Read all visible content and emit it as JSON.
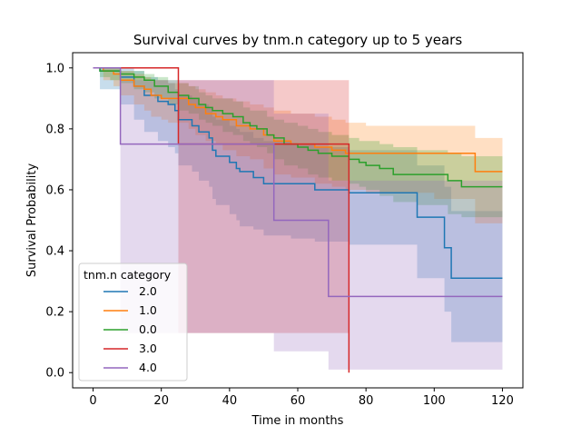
{
  "chart_data": {
    "type": "line",
    "title": "Survival curves by tnm.n category up to 5 years",
    "xlabel": "Time in months",
    "ylabel": "Survival Probability",
    "xlim": [
      -6,
      126
    ],
    "ylim": [
      -0.05,
      1.05
    ],
    "xticks": [
      0,
      20,
      40,
      60,
      80,
      100,
      120
    ],
    "yticks": [
      0.0,
      0.2,
      0.4,
      0.6,
      0.8,
      1.0
    ],
    "xtick_labels": [
      "0",
      "20",
      "40",
      "60",
      "80",
      "100",
      "120"
    ],
    "ytick_labels": [
      "0.0",
      "0.2",
      "0.4",
      "0.6",
      "0.8",
      "1.0"
    ],
    "grid": false,
    "legend": {
      "title": "tnm.n category",
      "placement": "lower-left"
    },
    "series": [
      {
        "name": "2.0",
        "color": "#1f77b4",
        "steps": [
          [
            0,
            1.0
          ],
          [
            2,
            0.99
          ],
          [
            8,
            0.97
          ],
          [
            12,
            0.94
          ],
          [
            15,
            0.91
          ],
          [
            19,
            0.89
          ],
          [
            22,
            0.88
          ],
          [
            24,
            0.86
          ],
          [
            25,
            0.83
          ],
          [
            29,
            0.81
          ],
          [
            31,
            0.79
          ],
          [
            34,
            0.77
          ],
          [
            35,
            0.73
          ],
          [
            36,
            0.71
          ],
          [
            40,
            0.69
          ],
          [
            42,
            0.67
          ],
          [
            43,
            0.66
          ],
          [
            47,
            0.64
          ],
          [
            50,
            0.62
          ],
          [
            58,
            0.62
          ],
          [
            65,
            0.6
          ],
          [
            75,
            0.59
          ],
          [
            95,
            0.51
          ],
          [
            103,
            0.41
          ],
          [
            105,
            0.31
          ],
          [
            120,
            0.31
          ]
        ],
        "ci_upper": [
          [
            0,
            1.0
          ],
          [
            2,
            1.0
          ],
          [
            8,
            1.0
          ],
          [
            12,
            0.99
          ],
          [
            15,
            0.97
          ],
          [
            19,
            0.96
          ],
          [
            22,
            0.95
          ],
          [
            24,
            0.93
          ],
          [
            25,
            0.91
          ],
          [
            29,
            0.9
          ],
          [
            31,
            0.88
          ],
          [
            34,
            0.87
          ],
          [
            35,
            0.84
          ],
          [
            36,
            0.83
          ],
          [
            40,
            0.81
          ],
          [
            42,
            0.8
          ],
          [
            43,
            0.79
          ],
          [
            47,
            0.77
          ],
          [
            50,
            0.76
          ],
          [
            58,
            0.75
          ],
          [
            65,
            0.74
          ],
          [
            75,
            0.73
          ],
          [
            95,
            0.68
          ],
          [
            103,
            0.61
          ],
          [
            105,
            0.53
          ],
          [
            120,
            0.53
          ]
        ],
        "ci_lower": [
          [
            0,
            1.0
          ],
          [
            2,
            0.93
          ],
          [
            8,
            0.88
          ],
          [
            12,
            0.83
          ],
          [
            15,
            0.79
          ],
          [
            19,
            0.76
          ],
          [
            22,
            0.74
          ],
          [
            24,
            0.72
          ],
          [
            25,
            0.68
          ],
          [
            29,
            0.66
          ],
          [
            31,
            0.63
          ],
          [
            34,
            0.61
          ],
          [
            35,
            0.57
          ],
          [
            36,
            0.55
          ],
          [
            40,
            0.52
          ],
          [
            42,
            0.5
          ],
          [
            43,
            0.48
          ],
          [
            47,
            0.47
          ],
          [
            50,
            0.45
          ],
          [
            58,
            0.44
          ],
          [
            65,
            0.43
          ],
          [
            75,
            0.42
          ],
          [
            95,
            0.31
          ],
          [
            103,
            0.2
          ],
          [
            105,
            0.1
          ],
          [
            120,
            0.1
          ]
        ]
      },
      {
        "name": "1.0",
        "color": "#ff7f0e",
        "steps": [
          [
            0,
            1.0
          ],
          [
            3,
            0.99
          ],
          [
            6,
            0.98
          ],
          [
            8,
            0.96
          ],
          [
            12,
            0.94
          ],
          [
            15,
            0.93
          ],
          [
            17,
            0.91
          ],
          [
            20,
            0.9
          ],
          [
            22,
            0.9
          ],
          [
            28,
            0.88
          ],
          [
            30,
            0.87
          ],
          [
            33,
            0.85
          ],
          [
            36,
            0.84
          ],
          [
            38,
            0.83
          ],
          [
            42,
            0.81
          ],
          [
            46,
            0.8
          ],
          [
            50,
            0.78
          ],
          [
            53,
            0.76
          ],
          [
            58,
            0.75
          ],
          [
            65,
            0.74
          ],
          [
            70,
            0.73
          ],
          [
            74,
            0.72
          ],
          [
            80,
            0.72
          ],
          [
            100,
            0.72
          ],
          [
            112,
            0.66
          ],
          [
            120,
            0.66
          ]
        ],
        "ci_upper": [
          [
            0,
            1.0
          ],
          [
            3,
            1.0
          ],
          [
            6,
            1.0
          ],
          [
            8,
            0.99
          ],
          [
            12,
            0.98
          ],
          [
            15,
            0.97
          ],
          [
            17,
            0.96
          ],
          [
            20,
            0.96
          ],
          [
            22,
            0.95
          ],
          [
            28,
            0.94
          ],
          [
            30,
            0.93
          ],
          [
            33,
            0.92
          ],
          [
            36,
            0.91
          ],
          [
            38,
            0.9
          ],
          [
            42,
            0.89
          ],
          [
            46,
            0.88
          ],
          [
            50,
            0.87
          ],
          [
            53,
            0.86
          ],
          [
            58,
            0.85
          ],
          [
            65,
            0.84
          ],
          [
            70,
            0.83
          ],
          [
            74,
            0.82
          ],
          [
            80,
            0.81
          ],
          [
            100,
            0.81
          ],
          [
            112,
            0.77
          ],
          [
            120,
            0.77
          ]
        ],
        "ci_lower": [
          [
            0,
            1.0
          ],
          [
            3,
            0.96
          ],
          [
            6,
            0.94
          ],
          [
            8,
            0.91
          ],
          [
            12,
            0.88
          ],
          [
            15,
            0.86
          ],
          [
            17,
            0.84
          ],
          [
            20,
            0.83
          ],
          [
            22,
            0.82
          ],
          [
            28,
            0.8
          ],
          [
            30,
            0.78
          ],
          [
            33,
            0.76
          ],
          [
            36,
            0.75
          ],
          [
            38,
            0.73
          ],
          [
            42,
            0.71
          ],
          [
            46,
            0.7
          ],
          [
            50,
            0.67
          ],
          [
            53,
            0.65
          ],
          [
            58,
            0.64
          ],
          [
            65,
            0.62
          ],
          [
            70,
            0.61
          ],
          [
            74,
            0.6
          ],
          [
            80,
            0.59
          ],
          [
            100,
            0.57
          ],
          [
            112,
            0.49
          ],
          [
            120,
            0.49
          ]
        ]
      },
      {
        "name": "0.0",
        "color": "#2ca02c",
        "steps": [
          [
            0,
            1.0
          ],
          [
            2,
            0.99
          ],
          [
            5,
            0.99
          ],
          [
            8,
            0.98
          ],
          [
            12,
            0.97
          ],
          [
            15,
            0.96
          ],
          [
            18,
            0.94
          ],
          [
            22,
            0.92
          ],
          [
            25,
            0.91
          ],
          [
            28,
            0.9
          ],
          [
            31,
            0.88
          ],
          [
            33,
            0.87
          ],
          [
            35,
            0.86
          ],
          [
            38,
            0.85
          ],
          [
            41,
            0.84
          ],
          [
            44,
            0.82
          ],
          [
            46,
            0.81
          ],
          [
            48,
            0.8
          ],
          [
            51,
            0.78
          ],
          [
            53,
            0.77
          ],
          [
            56,
            0.75
          ],
          [
            60,
            0.74
          ],
          [
            63,
            0.73
          ],
          [
            66,
            0.72
          ],
          [
            70,
            0.71
          ],
          [
            75,
            0.7
          ],
          [
            78,
            0.69
          ],
          [
            80,
            0.68
          ],
          [
            84,
            0.67
          ],
          [
            88,
            0.65
          ],
          [
            95,
            0.65
          ],
          [
            104,
            0.63
          ],
          [
            108,
            0.61
          ],
          [
            120,
            0.61
          ]
        ],
        "ci_upper": [
          [
            0,
            1.0
          ],
          [
            2,
            1.0
          ],
          [
            5,
            1.0
          ],
          [
            8,
            0.99
          ],
          [
            12,
            0.99
          ],
          [
            15,
            0.98
          ],
          [
            18,
            0.97
          ],
          [
            22,
            0.96
          ],
          [
            25,
            0.95
          ],
          [
            28,
            0.94
          ],
          [
            31,
            0.92
          ],
          [
            33,
            0.91
          ],
          [
            35,
            0.9
          ],
          [
            38,
            0.9
          ],
          [
            41,
            0.89
          ],
          [
            44,
            0.87
          ],
          [
            46,
            0.86
          ],
          [
            48,
            0.86
          ],
          [
            51,
            0.84
          ],
          [
            53,
            0.83
          ],
          [
            56,
            0.82
          ],
          [
            60,
            0.81
          ],
          [
            63,
            0.8
          ],
          [
            66,
            0.79
          ],
          [
            70,
            0.78
          ],
          [
            75,
            0.77
          ],
          [
            78,
            0.76
          ],
          [
            80,
            0.76
          ],
          [
            84,
            0.75
          ],
          [
            88,
            0.74
          ],
          [
            95,
            0.73
          ],
          [
            104,
            0.72
          ],
          [
            108,
            0.71
          ],
          [
            120,
            0.71
          ]
        ],
        "ci_lower": [
          [
            0,
            1.0
          ],
          [
            2,
            0.97
          ],
          [
            5,
            0.96
          ],
          [
            8,
            0.95
          ],
          [
            12,
            0.93
          ],
          [
            15,
            0.92
          ],
          [
            18,
            0.9
          ],
          [
            22,
            0.88
          ],
          [
            25,
            0.86
          ],
          [
            28,
            0.85
          ],
          [
            31,
            0.83
          ],
          [
            33,
            0.82
          ],
          [
            35,
            0.81
          ],
          [
            38,
            0.79
          ],
          [
            41,
            0.78
          ],
          [
            44,
            0.76
          ],
          [
            46,
            0.75
          ],
          [
            48,
            0.74
          ],
          [
            51,
            0.72
          ],
          [
            53,
            0.7
          ],
          [
            56,
            0.68
          ],
          [
            60,
            0.67
          ],
          [
            63,
            0.65
          ],
          [
            66,
            0.64
          ],
          [
            70,
            0.63
          ],
          [
            75,
            0.62
          ],
          [
            78,
            0.61
          ],
          [
            80,
            0.6
          ],
          [
            84,
            0.58
          ],
          [
            88,
            0.56
          ],
          [
            95,
            0.55
          ],
          [
            104,
            0.52
          ],
          [
            108,
            0.51
          ],
          [
            120,
            0.51
          ]
        ]
      },
      {
        "name": "3.0",
        "color": "#d62728",
        "steps": [
          [
            0,
            1.0
          ],
          [
            25,
            0.75
          ],
          [
            75,
            0.0
          ],
          [
            75,
            0.0
          ]
        ],
        "ci_upper": [
          [
            0,
            1.0
          ],
          [
            25,
            0.96
          ],
          [
            75,
            0.96
          ],
          [
            75,
            0.96
          ]
        ],
        "ci_lower": [
          [
            0,
            1.0
          ],
          [
            25,
            0.13
          ],
          [
            75,
            0.13
          ],
          [
            75,
            0.13
          ]
        ]
      },
      {
        "name": "4.0",
        "color": "#9467bd",
        "steps": [
          [
            0,
            1.0
          ],
          [
            8,
            0.75
          ],
          [
            53,
            0.5
          ],
          [
            69,
            0.25
          ],
          [
            120,
            0.25
          ]
        ],
        "ci_upper": [
          [
            0,
            1.0
          ],
          [
            8,
            0.96
          ],
          [
            53,
            0.85
          ],
          [
            69,
            0.63
          ],
          [
            120,
            0.63
          ]
        ],
        "ci_lower": [
          [
            0,
            1.0
          ],
          [
            8,
            0.13
          ],
          [
            53,
            0.07
          ],
          [
            69,
            0.01
          ],
          [
            120,
            0.01
          ]
        ]
      }
    ]
  }
}
